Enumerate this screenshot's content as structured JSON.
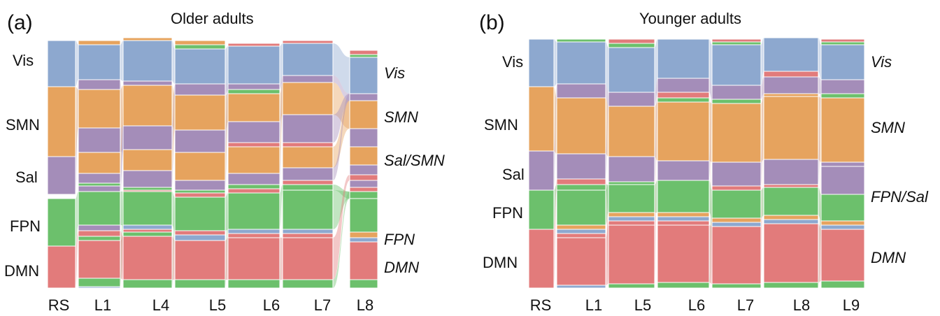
{
  "colors": {
    "Vis": "#8da8cf",
    "SMN": "#e6a35e",
    "Sal": "#a48db9",
    "FPN": "#6cc06c",
    "DMN": "#e27b7b",
    "ribbon_opacity": 0.42
  },
  "panels": [
    {
      "letter": "(a)",
      "title": "Older adults",
      "left_labels": [
        "Vis",
        "SMN",
        "Sal",
        "FPN",
        "DMN"
      ],
      "right_labels": [
        "Vis",
        "SMN",
        "Sal/SMN",
        "FPN",
        "DMN"
      ],
      "ticks": [
        "RS",
        "L1",
        "L4",
        "L5",
        "L6",
        "L7",
        "L8"
      ]
    },
    {
      "letter": "(b)",
      "title": "Younger adults",
      "left_labels": [
        "Vis",
        "SMN",
        "Sal",
        "FPN",
        "DMN"
      ],
      "right_labels": [
        "Vis",
        "SMN",
        "FPN/Sal",
        "DMN"
      ],
      "ticks": [
        "RS",
        "L1",
        "L5",
        "L6",
        "L7",
        "L8",
        "L9"
      ]
    }
  ]
}
